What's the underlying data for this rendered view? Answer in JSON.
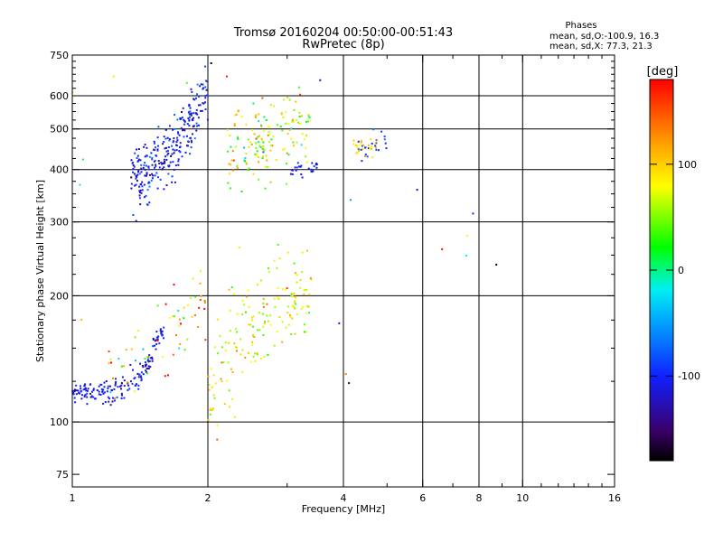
{
  "title_line1": "Tromsø 20160204 00:50:00-00:51:43",
  "title_line2": "RwPretec (8p)",
  "stats": {
    "heading": "Phases",
    "line_o": "mean, sd,O:-100.9, 16.3",
    "line_x": "mean, sd,X: 77.3, 21.3"
  },
  "colorbar": {
    "unit_label": "[deg]",
    "tick_labels": [
      "100",
      "0",
      "-100"
    ],
    "tick_values": [
      100,
      0,
      -100
    ],
    "range": [
      -180,
      180
    ]
  },
  "chart_data": {
    "type": "scatter",
    "xlabel": "Frequency [MHz]",
    "ylabel": "Stationary phase Virtual Height [km]",
    "xscale": "log2",
    "yscale": "log",
    "xlim": [
      1,
      16
    ],
    "ylim": [
      70,
      750
    ],
    "x_ticks": [
      1,
      2,
      4,
      6,
      8,
      10,
      16
    ],
    "x_tick_labels": [
      "1",
      "2",
      "4",
      "6",
      "8",
      "10",
      "16"
    ],
    "y_ticks": [
      75,
      100,
      200,
      300,
      400,
      500,
      600,
      750
    ],
    "y_tick_labels": [
      "75",
      "100",
      "200",
      "300",
      "400",
      "500",
      "600",
      "750"
    ],
    "vertical_gridlines_mhz": [
      2,
      4,
      6,
      8,
      10
    ],
    "horizontal_gridlines_km": [
      100,
      200,
      300,
      400,
      500,
      600
    ],
    "color_encoding": "phase_deg",
    "clusters": [
      {
        "name_hidden": "o_low",
        "x_range": [
          1.0,
          1.6
        ],
        "y_curve": [
          [
            1.0,
            118
          ],
          [
            1.2,
            118
          ],
          [
            1.35,
            122
          ],
          [
            1.45,
            135
          ],
          [
            1.55,
            155
          ],
          [
            1.65,
            180
          ],
          [
            1.75,
            195
          ]
        ],
        "phase_mean": -110,
        "phase_sd": 15,
        "count": 170,
        "spread_y": 0.035
      },
      {
        "name_hidden": "o_high",
        "x_range": [
          1.35,
          2.0
        ],
        "y_curve": [
          [
            1.35,
            380
          ],
          [
            1.5,
            400
          ],
          [
            1.65,
            440
          ],
          [
            1.8,
            500
          ],
          [
            1.9,
            560
          ],
          [
            2.0,
            620
          ]
        ],
        "phase_mean": -105,
        "phase_sd": 20,
        "count": 280,
        "spread_y": 0.08
      },
      {
        "name_hidden": "x_low_mixed",
        "x_range": [
          1.2,
          2.0
        ],
        "y_curve": [
          [
            1.2,
            130
          ],
          [
            1.5,
            150
          ],
          [
            1.7,
            170
          ],
          [
            1.9,
            190
          ],
          [
            2.0,
            200
          ]
        ],
        "phase_mean": 100,
        "phase_sd": 60,
        "count": 60,
        "spread_y": 0.1
      },
      {
        "name_hidden": "x_band_2_4",
        "x_range": [
          2.0,
          3.4
        ],
        "y_curve": [
          [
            2.0,
            120
          ],
          [
            2.4,
            160
          ],
          [
            2.8,
            185
          ],
          [
            3.4,
            200
          ]
        ],
        "phase_mean": 80,
        "phase_sd": 25,
        "count": 170,
        "spread_y": 0.14
      },
      {
        "name_hidden": "x_upper_2_3",
        "x_range": [
          2.2,
          3.4
        ],
        "y_curve": [
          [
            2.2,
            440
          ],
          [
            2.6,
            470
          ],
          [
            3.0,
            500
          ],
          [
            3.4,
            520
          ]
        ],
        "phase_mean": 70,
        "phase_sd": 45,
        "count": 150,
        "spread_y": 0.12
      },
      {
        "name_hidden": "o_upper_3",
        "x_range": [
          3.0,
          3.5
        ],
        "y_curve": [
          [
            3.0,
            400
          ],
          [
            3.5,
            405
          ]
        ],
        "phase_mean": -105,
        "phase_sd": 10,
        "count": 25,
        "spread_y": 0.02
      },
      {
        "name_hidden": "o_4_5",
        "x_range": [
          4.3,
          5.0
        ],
        "y_curve": [
          [
            4.3,
            440
          ],
          [
            4.7,
            460
          ],
          [
            5.0,
            475
          ]
        ],
        "phase_mean": -100,
        "phase_sd": 15,
        "count": 22,
        "spread_y": 0.03
      },
      {
        "name_hidden": "x_4_5",
        "x_range": [
          4.2,
          4.8
        ],
        "y_curve": [
          [
            4.2,
            450
          ],
          [
            4.8,
            455
          ]
        ],
        "phase_mean": 95,
        "phase_sd": 15,
        "count": 22,
        "spread_y": 0.03
      },
      {
        "name_hidden": "scatter_sparse",
        "x_range": [
          1.0,
          9.0
        ],
        "y_curve": [
          [
            1.0,
            300
          ],
          [
            9.0,
            300
          ]
        ],
        "phase_mean": 0,
        "phase_sd": 120,
        "count": 30,
        "spread_y": 0.7
      }
    ]
  }
}
